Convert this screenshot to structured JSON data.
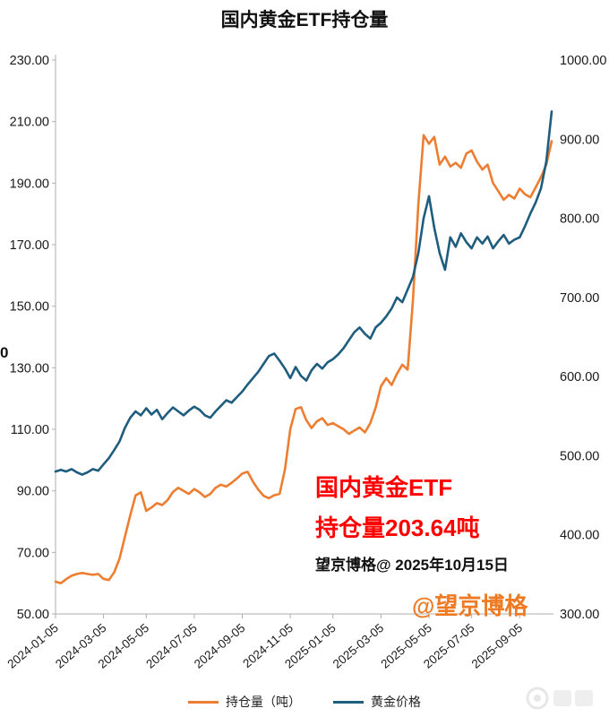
{
  "chart_data": {
    "type": "line",
    "title": "国内黄金ETF持仓量",
    "grid": false,
    "legend_position": "bottom",
    "x_tick_labels": [
      "2024-01-05",
      "2024-03-05",
      "2024-05-05",
      "2024-07-05",
      "2024-09-05",
      "2024-11-05",
      "2025-01-05",
      "2025-03-05",
      "2025-05-05",
      "2025-07-05",
      "2025-09-05"
    ],
    "x_tick_indices": [
      0,
      9,
      17,
      26,
      35,
      44,
      52,
      61,
      70,
      78,
      87
    ],
    "y_left": {
      "min": 50,
      "max": 230,
      "ticks": [
        230,
        210,
        190,
        170,
        150,
        130,
        110,
        90,
        70,
        50
      ]
    },
    "y_right": {
      "min": 300,
      "max": 1000,
      "ticks": [
        1000,
        900,
        800,
        700,
        600,
        500,
        400,
        300
      ]
    },
    "series": [
      {
        "name": "持仓量（吨）",
        "axis": "left",
        "color": "#ED7D31",
        "values": [
          60.5,
          60.0,
          61.3,
          62.4,
          63.0,
          63.3,
          63.0,
          62.7,
          63.0,
          61.4,
          61.0,
          63.5,
          68.0,
          75.0,
          82.0,
          88.5,
          89.5,
          83.5,
          84.6,
          86.0,
          85.4,
          87.0,
          89.6,
          91.0,
          90.0,
          89.0,
          90.6,
          89.5,
          88.0,
          89.0,
          91.0,
          92.0,
          91.4,
          92.6,
          94.0,
          95.6,
          96.2,
          93.0,
          90.4,
          88.4,
          87.6,
          88.6,
          89.0,
          97.0,
          110.0,
          116.6,
          117.2,
          113.0,
          110.4,
          112.6,
          113.6,
          111.4,
          112.0,
          111.0,
          110.0,
          108.5,
          109.6,
          110.6,
          109.0,
          112.0,
          117.0,
          124.0,
          126.6,
          124.4,
          128.0,
          131.0,
          129.4,
          152.0,
          183.0,
          205.6,
          202.8,
          205.0,
          196.0,
          198.6,
          195.4,
          196.6,
          195.0,
          199.6,
          200.6,
          197.0,
          194.4,
          196.0,
          190.0,
          187.4,
          184.6,
          186.2,
          185.0,
          188.2,
          186.4,
          185.4,
          188.6,
          192.0,
          196.0,
          203.64
        ]
      },
      {
        "name": "黄金价格",
        "axis": "right",
        "color": "#1F5D7E",
        "values": [
          480,
          482,
          480,
          483,
          479,
          476,
          479,
          483,
          481,
          489,
          497,
          507,
          518,
          535,
          548,
          556,
          551,
          560,
          552,
          558,
          546,
          554,
          561,
          556,
          551,
          557,
          562,
          558,
          551,
          548,
          556,
          563,
          570,
          567,
          574,
          581,
          590,
          598,
          606,
          616,
          626,
          629,
          620,
          610,
          598,
          612,
          601,
          595,
          608,
          616,
          610,
          618,
          622,
          628,
          636,
          646,
          656,
          662,
          654,
          648,
          662,
          668,
          676,
          686,
          700,
          694,
          710,
          726,
          756,
          800,
          828,
          788,
          756,
          735,
          776,
          764,
          781,
          770,
          762,
          776,
          768,
          777,
          762,
          771,
          779,
          768,
          773,
          776,
          790,
          806,
          820,
          838,
          872,
          935
        ]
      }
    ]
  },
  "annotations": {
    "red_line1": "国内黄金ETF",
    "red_line2": "持仓量203.64吨",
    "byline": "望京博格@ 2025年10月15日",
    "watermark": "@望京博格",
    "stray_label": "0"
  },
  "colors": {
    "accent_orange": "#ED7D31",
    "accent_blue": "#1F5D7E",
    "annotation_red": "#FF0000",
    "watermark_orange": "#EE7A23"
  }
}
